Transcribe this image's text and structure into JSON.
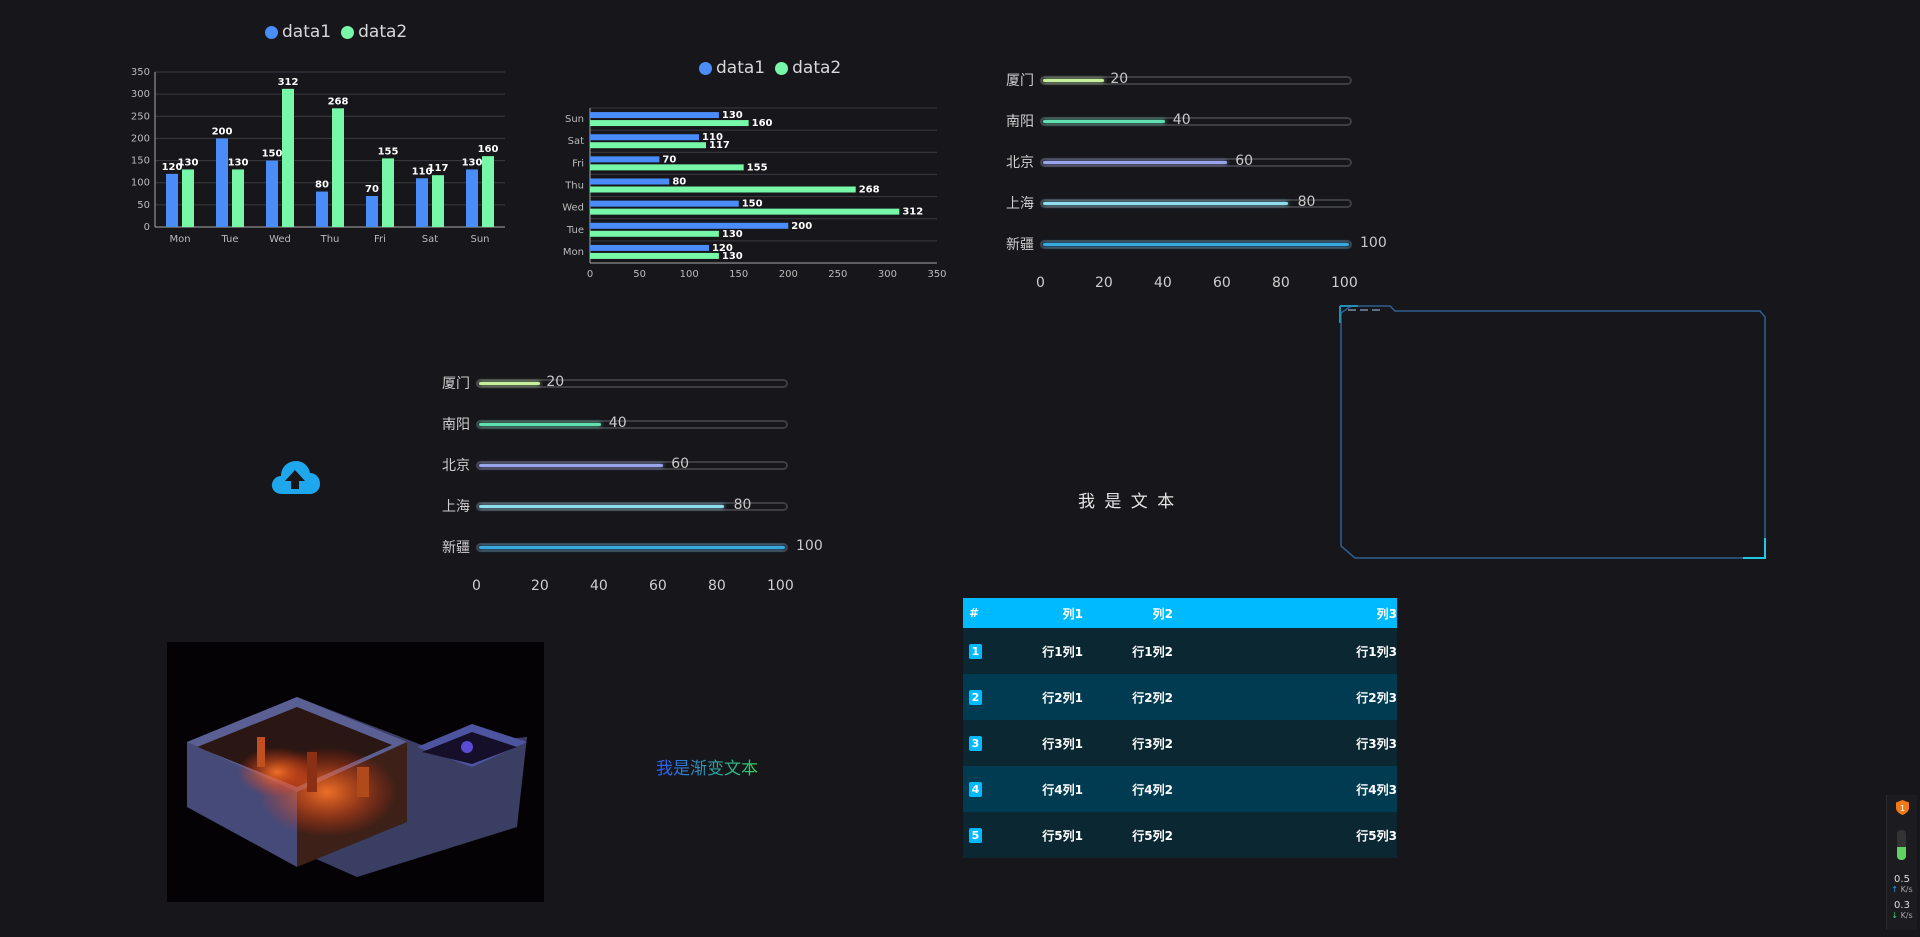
{
  "chart_data": [
    {
      "type": "bar",
      "orientation": "vertical",
      "categories": [
        "Mon",
        "Tue",
        "Wed",
        "Thu",
        "Fri",
        "Sat",
        "Sun"
      ],
      "series": [
        {
          "name": "data1",
          "values": [
            120,
            200,
            150,
            80,
            70,
            110,
            130
          ]
        },
        {
          "name": "data2",
          "values": [
            130,
            130,
            312,
            268,
            155,
            117,
            160
          ]
        }
      ],
      "ylim": [
        0,
        350
      ],
      "yticks": [
        0,
        50,
        100,
        150,
        200,
        250,
        300,
        350
      ],
      "legend": "top-center",
      "grid": true
    },
    {
      "type": "bar",
      "orientation": "horizontal",
      "categories": [
        "Mon",
        "Tue",
        "Wed",
        "Thu",
        "Fri",
        "Sat",
        "Sun"
      ],
      "series": [
        {
          "name": "data1",
          "values": [
            120,
            200,
            150,
            80,
            70,
            110,
            130
          ]
        },
        {
          "name": "data2",
          "values": [
            130,
            130,
            312,
            268,
            155,
            117,
            160
          ]
        }
      ],
      "xlim": [
        0,
        350
      ],
      "xticks": [
        0,
        50,
        100,
        150,
        200,
        250,
        300,
        350
      ],
      "legend": "top-center",
      "grid": true
    }
  ],
  "colors": {
    "data1": "#4b8df8",
    "data2": "#77f7a8"
  },
  "progress": {
    "items": [
      {
        "city": "厦门",
        "value": 20,
        "color": "#c6ef9e"
      },
      {
        "city": "南阳",
        "value": 40,
        "color": "#62dfb0"
      },
      {
        "city": "北京",
        "value": 60,
        "color": "#9aa4ea"
      },
      {
        "city": "上海",
        "value": 80,
        "color": "#8fdcef"
      },
      {
        "city": "新疆",
        "value": 100,
        "color": "#39a8de"
      }
    ],
    "axis": [
      "0",
      "20",
      "40",
      "60",
      "80",
      "100"
    ]
  },
  "center_text": "我 是 文 本",
  "gradient_text": "我是渐变文本",
  "upload_icon": "cloud-upload-icon",
  "table": {
    "headers": [
      "#",
      "列1",
      "列2",
      "列3"
    ],
    "rows": [
      [
        "1",
        "行1列1",
        "行1列2",
        "行1列3"
      ],
      [
        "2",
        "行2列1",
        "行2列2",
        "行2列3"
      ],
      [
        "3",
        "行3列1",
        "行3列2",
        "行3列3"
      ],
      [
        "4",
        "行4列1",
        "行4列2",
        "行4列3"
      ],
      [
        "5",
        "行5列1",
        "行5列2",
        "行5列3"
      ]
    ]
  },
  "tray": {
    "badge": "1",
    "up": "0.5",
    "up_unit": "K/s",
    "down": "0.3",
    "down_unit": "K/s"
  }
}
